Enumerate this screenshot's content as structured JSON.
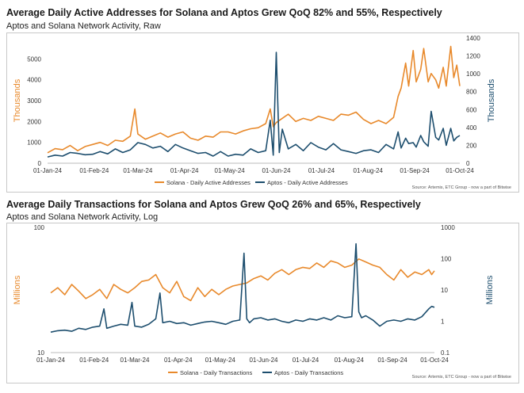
{
  "chart_data": [
    {
      "type": "line",
      "title": "Average Daily Active Addresses for Solana and Aptos Grew QoQ 82% and 55%, Respectively",
      "subtitle": "Aptos and Solana Network Activity, Raw",
      "ylabel_left": "Thousands",
      "ylabel_right": "Thousands",
      "ylim_left": [
        0,
        6000
      ],
      "yticks_left": [
        "0",
        "1000",
        "2000",
        "3000",
        "4000",
        "5000"
      ],
      "ylim_right": [
        0,
        1400
      ],
      "yticks_right": [
        "0",
        "200",
        "400",
        "600",
        "800",
        "1000",
        "1200",
        "1400"
      ],
      "x_tick_labels": [
        "01-Jan-24",
        "01-Feb-24",
        "01-Mar-24",
        "01-Apr-24",
        "01-May-24",
        "01-Jun-24",
        "01-Jul-24",
        "01-Aug-24",
        "01-Sep-24",
        "01-Oct-24"
      ],
      "x_tick_days": [
        0,
        31,
        60,
        91,
        121,
        152,
        182,
        213,
        244,
        274
      ],
      "source": "Source: Artemis, ETC Group - now a part of Bitwise",
      "series": [
        {
          "name": "Solana - Daily Active Addresses",
          "axis": "left",
          "color": "#E8892B",
          "x": [
            0,
            5,
            10,
            15,
            20,
            25,
            30,
            35,
            40,
            45,
            50,
            55,
            58,
            60,
            65,
            70,
            75,
            80,
            85,
            90,
            95,
            100,
            105,
            110,
            115,
            120,
            125,
            130,
            135,
            140,
            145,
            148,
            150,
            152,
            155,
            160,
            165,
            170,
            175,
            180,
            185,
            190,
            195,
            200,
            205,
            210,
            215,
            220,
            225,
            230,
            233,
            235,
            238,
            240,
            243,
            245,
            248,
            250,
            253,
            255,
            258,
            260,
            263,
            265,
            268,
            270,
            272,
            274
          ],
          "values": [
            500,
            700,
            650,
            850,
            600,
            800,
            900,
            1000,
            850,
            1100,
            1050,
            1300,
            2600,
            1400,
            1150,
            1300,
            1450,
            1250,
            1400,
            1500,
            1200,
            1100,
            1300,
            1250,
            1500,
            1500,
            1400,
            1550,
            1650,
            1700,
            1900,
            2600,
            1750,
            1950,
            2100,
            2350,
            2000,
            2150,
            2050,
            2250,
            2150,
            2050,
            2350,
            2300,
            2450,
            2100,
            1900,
            2050,
            1900,
            2200,
            3200,
            3600,
            4800,
            3700,
            5400,
            3900,
            4500,
            5500,
            3900,
            4300,
            4000,
            3600,
            4600,
            3700,
            5600,
            4100,
            4700,
            3700
          ]
        },
        {
          "name": "Aptos - Daily Active Addresses",
          "axis": "right",
          "color": "#1D4E6E",
          "x": [
            0,
            5,
            10,
            15,
            20,
            25,
            30,
            35,
            40,
            45,
            50,
            55,
            60,
            65,
            70,
            75,
            80,
            85,
            90,
            95,
            100,
            105,
            110,
            115,
            120,
            125,
            130,
            135,
            140,
            145,
            148,
            150,
            152,
            154,
            156,
            160,
            165,
            170,
            175,
            180,
            185,
            190,
            195,
            200,
            205,
            210,
            215,
            220,
            225,
            230,
            233,
            235,
            238,
            240,
            243,
            245,
            248,
            250,
            253,
            255,
            258,
            260,
            263,
            265,
            268,
            270,
            272,
            274
          ],
          "values": [
            70,
            90,
            80,
            120,
            110,
            95,
            100,
            130,
            105,
            160,
            120,
            150,
            230,
            210,
            170,
            190,
            130,
            210,
            170,
            140,
            110,
            120,
            80,
            130,
            80,
            100,
            90,
            160,
            120,
            140,
            480,
            90,
            1240,
            120,
            380,
            160,
            210,
            140,
            230,
            180,
            150,
            220,
            150,
            130,
            110,
            140,
            150,
            120,
            210,
            160,
            350,
            170,
            280,
            220,
            230,
            180,
            310,
            240,
            190,
            580,
            290,
            260,
            390,
            200,
            390,
            250,
            290,
            310
          ]
        }
      ]
    },
    {
      "type": "line",
      "title": "Average Daily Transactions for Solana and Aptos Grew QoQ 26% and 65%, Respectively",
      "subtitle": "Aptos and Solana Network Activity, Log",
      "ylabel_left": "Millions",
      "ylabel_right": "Millions",
      "yscale": "log",
      "ylim_left": [
        10,
        100
      ],
      "yticks_left": [
        "10",
        "100"
      ],
      "ylim_right": [
        0.1,
        1000
      ],
      "yticks_right": [
        "0.1",
        "1",
        "10",
        "100",
        "1000"
      ],
      "x_tick_labels": [
        "01-Jan-24",
        "01-Feb-24",
        "01-Mar-24",
        "01-Apr-24",
        "01-May-24",
        "01-Jun-24",
        "01-Jul-24",
        "01-Aug-24",
        "01-Sep-24",
        "01-Oct-24"
      ],
      "x_tick_days": [
        0,
        31,
        60,
        91,
        121,
        152,
        182,
        213,
        244,
        274
      ],
      "source": "Source: Artemis, ETC Group - now a part of Bitwise",
      "series": [
        {
          "name": "Solana - Daily Transactions",
          "axis": "left",
          "color": "#E8892B",
          "x": [
            0,
            5,
            10,
            15,
            20,
            25,
            30,
            35,
            40,
            45,
            50,
            55,
            60,
            65,
            70,
            75,
            80,
            85,
            90,
            95,
            100,
            105,
            110,
            115,
            120,
            125,
            130,
            135,
            140,
            145,
            150,
            155,
            160,
            165,
            170,
            175,
            180,
            185,
            190,
            195,
            200,
            205,
            210,
            215,
            220,
            225,
            230,
            235,
            240,
            245,
            250,
            255,
            260,
            265,
            270,
            272,
            274
          ],
          "values": [
            30,
            33,
            29,
            35,
            31,
            27,
            29,
            32,
            27,
            35,
            32,
            30,
            33,
            37,
            38,
            42,
            33,
            30,
            37,
            28,
            26,
            33,
            28,
            32,
            29,
            32,
            34,
            35,
            36,
            39,
            41,
            38,
            43,
            46,
            42,
            46,
            48,
            47,
            52,
            48,
            54,
            52,
            48,
            50,
            56,
            53,
            50,
            48,
            42,
            38,
            46,
            40,
            44,
            42,
            46,
            42,
            45
          ]
        },
        {
          "name": "Aptos - Daily Transactions",
          "axis": "right",
          "color": "#1D4E6E",
          "x": [
            0,
            5,
            10,
            15,
            20,
            25,
            30,
            35,
            38,
            40,
            45,
            50,
            55,
            58,
            60,
            65,
            70,
            75,
            78,
            80,
            85,
            90,
            95,
            100,
            105,
            110,
            115,
            120,
            125,
            130,
            135,
            138,
            140,
            142,
            145,
            150,
            155,
            160,
            165,
            170,
            175,
            180,
            185,
            190,
            195,
            200,
            205,
            210,
            215,
            218,
            220,
            222,
            225,
            230,
            235,
            240,
            245,
            250,
            255,
            260,
            265,
            270,
            272,
            274
          ],
          "values": [
            0.45,
            0.5,
            0.52,
            0.48,
            0.6,
            0.55,
            0.65,
            0.7,
            2.5,
            0.6,
            0.7,
            0.8,
            0.75,
            4.0,
            0.7,
            0.65,
            0.8,
            1.2,
            8.0,
            0.9,
            1.0,
            0.85,
            0.9,
            0.75,
            0.85,
            0.95,
            1.0,
            0.9,
            0.8,
            1.0,
            1.1,
            150,
            1.2,
            0.9,
            1.2,
            1.3,
            1.1,
            1.2,
            1.0,
            0.9,
            1.1,
            1.0,
            1.2,
            1.1,
            1.3,
            1.1,
            1.5,
            1.3,
            1.4,
            300,
            2.0,
            1.3,
            1.5,
            1.1,
            0.7,
            1.0,
            1.1,
            1.0,
            1.2,
            1.1,
            1.4,
            2.5,
            3.0,
            2.8
          ]
        }
      ]
    }
  ]
}
